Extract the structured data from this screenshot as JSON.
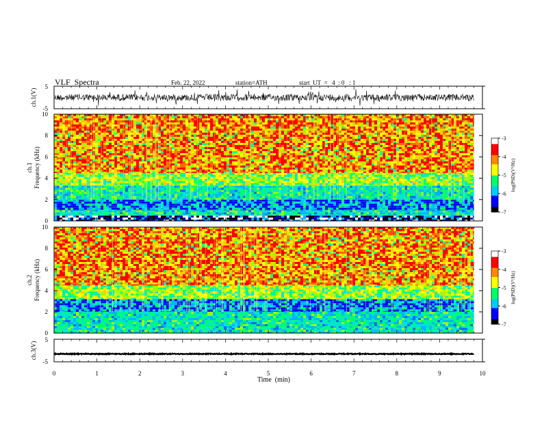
{
  "header": {
    "title": "VLF  Spectra",
    "date": "Feb. 22, 2022",
    "station": "station=ATH",
    "start": "start  UT  =   4  : 0   : 1"
  },
  "chart_data": [
    {
      "type": "line",
      "panel": "ch1-waveform",
      "ylabel": "ch.1(V)",
      "ylim": [
        -5,
        5
      ],
      "yticks": [
        "5",
        "-5"
      ],
      "trace_baseline": 0,
      "trace_amplitude": 1.5,
      "trace_color": "#000000"
    },
    {
      "type": "heatmap",
      "panel": "ch1-spectrogram",
      "ylabel_channel": "ch.1",
      "ylabel": "Frequency  (kHz)",
      "ylim": [
        0,
        10
      ],
      "yticks": [
        "10",
        "8",
        "6",
        "4",
        "2",
        "0"
      ],
      "bands_khz": [
        {
          "from": 0,
          "to": 0.5,
          "level": "min"
        },
        {
          "from": 0.5,
          "to": 1.0,
          "level": "low"
        },
        {
          "from": 1.0,
          "to": 2.0,
          "level": "very-low"
        },
        {
          "from": 2.0,
          "to": 3.3,
          "level": "low"
        },
        {
          "from": 3.3,
          "to": 4.5,
          "level": "mid"
        },
        {
          "from": 4.5,
          "to": 10,
          "level": "high"
        }
      ],
      "colorbar": {
        "label": "log(PSD)(V²/Hz)",
        "ticks": [
          "-3",
          "-4",
          "-5",
          "-6",
          "-7"
        ],
        "range": [
          -7,
          -3
        ],
        "colors": [
          "#000000",
          "#0000ff",
          "#00ccff",
          "#00ff66",
          "#ffff00",
          "#ff8800",
          "#ff0000",
          "#ffffff"
        ]
      }
    },
    {
      "type": "heatmap",
      "panel": "ch2-spectrogram",
      "ylabel_channel": "ch.2",
      "ylabel": "Frequency  (kHz)",
      "ylim": [
        0,
        10
      ],
      "yticks": [
        "10",
        "8",
        "6",
        "4",
        "2",
        "0"
      ],
      "bands_khz": [
        {
          "from": 0,
          "to": 0.5,
          "level": "low"
        },
        {
          "from": 0.5,
          "to": 2.0,
          "level": "low"
        },
        {
          "from": 2.0,
          "to": 3.2,
          "level": "very-low"
        },
        {
          "from": 3.2,
          "to": 4.5,
          "level": "mid"
        },
        {
          "from": 4.5,
          "to": 10,
          "level": "high"
        }
      ],
      "colorbar": {
        "label": "log(PSD)(V²/Hz)",
        "ticks": [
          "-3",
          "-4",
          "-5",
          "-6",
          "-7"
        ],
        "range": [
          -7,
          -3
        ],
        "colors": [
          "#000000",
          "#0000ff",
          "#00ccff",
          "#00ff66",
          "#ffff00",
          "#ff8800",
          "#ff0000",
          "#ffffff"
        ]
      }
    },
    {
      "type": "line",
      "panel": "ch3-waveform",
      "ylabel": "ch.3(V)",
      "ylim": [
        -5,
        5
      ],
      "yticks": [
        "5",
        "-5"
      ],
      "trace_baseline": -1.5,
      "trace_amplitude": 0.2,
      "trace_color": "#000000"
    }
  ],
  "x_axis": {
    "label": "Time  (min)",
    "xlim": [
      0,
      10
    ],
    "data_end": 9.8,
    "ticks": [
      "0",
      "1",
      "2",
      "3",
      "4",
      "5",
      "6",
      "7",
      "8",
      "9",
      "10"
    ]
  }
}
